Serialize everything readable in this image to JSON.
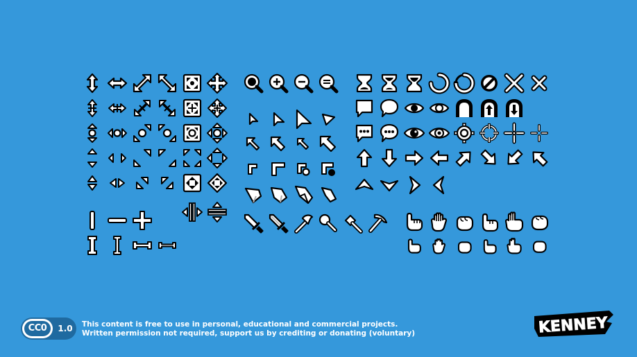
{
  "colors": {
    "background": "#3598db",
    "icon_fill": "#ffffff",
    "icon_outline": "#000000",
    "badge": "#1f6aa0"
  },
  "footer": {
    "license_badge": "CC0",
    "version": "1.0",
    "license_line1": "This content is free to use in personal, educational and commercial projects.",
    "license_line2": "Written permission not required, support us by crediting or donating (voluntary)",
    "brand": "KENNEY"
  },
  "icons": [
    "resize-vertical-icon",
    "resize-horizontal-icon",
    "resize-diagonal-a-icon",
    "resize-diagonal-b-icon",
    "move-square-icon",
    "move-arrows-icon",
    "zoom-icon",
    "zoom-in-icon",
    "zoom-out-icon",
    "zoom-reset-icon",
    "hourglass-icon",
    "hourglass-half-icon",
    "hourglass-empty-icon",
    "busy-circle-icon",
    "busy-circle-fade-icon",
    "disabled-icon",
    "cross-large-icon",
    "cross-small-icon",
    "message-square-icon",
    "message-round-icon",
    "eye-icon",
    "eye-outline-icon",
    "door-icon",
    "door-enter-icon",
    "door-exit-icon",
    "message-dots-square-icon",
    "message-dots-round-icon",
    "eye-large-icon",
    "eye-cross-icon",
    "target-round-icon",
    "target-cross-icon",
    "crosshair-icon",
    "crosshair-small-icon",
    "arrow-up-icon",
    "arrow-down-icon",
    "arrow-right-icon",
    "arrow-left-icon",
    "arrow-up-right-icon",
    "arrow-down-right-icon",
    "arrow-down-left-icon",
    "arrow-up-left-icon",
    "navigation-up-icon",
    "navigation-down-icon",
    "navigation-right-icon",
    "navigation-left-icon",
    "pointer-small-icon",
    "pointer-icon",
    "pointer-large-icon",
    "pointer-tilted-icon",
    "cursor-nw-icon",
    "cursor-nw-large-icon",
    "cursor-nw-thin-icon",
    "cursor-nw-bold-icon",
    "corner-icon",
    "corner-large-icon",
    "corner-dot-icon",
    "corner-dot-large-icon",
    "pointer-shape-a-icon",
    "pointer-shape-b-icon",
    "pointer-shape-c-icon",
    "pointer-shape-d-icon",
    "sword-icon",
    "sword-silver-icon",
    "axe-icon",
    "shovel-icon",
    "hammer-icon",
    "pickaxe-icon",
    "hand-point-icon",
    "hand-open-icon",
    "hand-closed-icon",
    "hand-thumb-icon",
    "hand-peace-icon",
    "hand-rock-icon",
    "beam-icon",
    "line-horizontal-icon",
    "plus-icon",
    "split-horizontal-icon",
    "split-vertical-icon",
    "beam-large-icon",
    "beam-bold-icon",
    "bar-horizontal-icon",
    "bar-horizontal-thin-icon"
  ]
}
